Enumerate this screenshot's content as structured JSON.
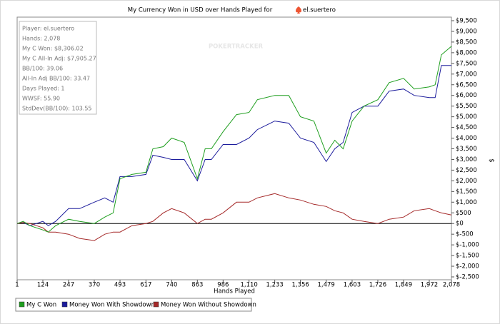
{
  "chart_data": {
    "type": "line",
    "title": "My Currency Won in USD over Hands Played for",
    "title_player": "el.suertero",
    "watermark": "POKERTRACKER",
    "info_box": [
      "Player: el.suertero",
      "Hands: 2,078",
      "My C Won: $8,306.02",
      "My C All-In Adj: $7,905.27",
      "BB/100: 39.06",
      "All-In Adj BB/100: 33.47",
      "Days Played: 1",
      "WWSF: 55.90",
      "StdDev(BB/100): 103.55"
    ],
    "x_label": "Hands Played",
    "y_label": "$",
    "x": [
      1,
      30,
      62,
      124,
      150,
      185,
      247,
      300,
      370,
      420,
      460,
      493,
      550,
      617,
      650,
      700,
      740,
      800,
      863,
      900,
      930,
      986,
      1050,
      1110,
      1150,
      1233,
      1300,
      1356,
      1420,
      1479,
      1520,
      1560,
      1603,
      1660,
      1726,
      1780,
      1849,
      1900,
      1972,
      2000,
      2030,
      2078
    ],
    "series": [
      {
        "name": "My C Won",
        "color": "#1e9e1e",
        "values": [
          0,
          100,
          -100,
          -300,
          -400,
          -100,
          200,
          100,
          0,
          300,
          500,
          2100,
          2300,
          2400,
          3500,
          3600,
          4000,
          3800,
          2100,
          3500,
          3500,
          4300,
          5100,
          5200,
          5800,
          6000,
          6000,
          5000,
          4800,
          3300,
          3900,
          3500,
          4800,
          5500,
          5800,
          6600,
          6800,
          6300,
          6400,
          6500,
          7900,
          8300
        ]
      },
      {
        "name": "Money Won With Showdown",
        "color": "#1c1c9c",
        "values": [
          0,
          50,
          -100,
          100,
          -100,
          100,
          700,
          700,
          1000,
          1200,
          1000,
          2200,
          2200,
          2300,
          3200,
          3100,
          3000,
          3000,
          2000,
          3000,
          3000,
          3700,
          3700,
          4000,
          4400,
          4800,
          4700,
          4000,
          3800,
          2900,
          3500,
          3800,
          5200,
          5500,
          5500,
          6200,
          6300,
          6000,
          5900,
          5900,
          7400,
          7400
        ]
      },
      {
        "name": "Money Won Without Showdown",
        "color": "#a52a2a",
        "values": [
          0,
          50,
          0,
          -200,
          -400,
          -400,
          -500,
          -700,
          -800,
          -500,
          -400,
          -400,
          -100,
          0,
          100,
          500,
          700,
          500,
          0,
          200,
          200,
          500,
          1000,
          1000,
          1200,
          1400,
          1200,
          1100,
          900,
          800,
          600,
          500,
          200,
          100,
          0,
          200,
          300,
          600,
          700,
          600,
          500,
          400
        ]
      }
    ],
    "xlim": [
      1,
      2078
    ],
    "xticks": [
      1,
      124,
      247,
      370,
      493,
      617,
      740,
      863,
      986,
      {
        "value": 1110,
        "label": "1,110"
      },
      {
        "value": 1233,
        "label": "1,233"
      },
      {
        "value": 1356,
        "label": "1,356"
      },
      {
        "value": 1479,
        "label": "1,479"
      },
      {
        "value": 1603,
        "label": "1,603"
      },
      {
        "value": 1726,
        "label": "1,726"
      },
      {
        "value": 1849,
        "label": "1,849"
      },
      {
        "value": 1972,
        "label": "1,972"
      },
      {
        "value": 2078,
        "label": "2,078"
      }
    ],
    "ylim": [
      -2500,
      9500
    ],
    "yticks": [
      {
        "value": -2500,
        "label": "$-2,500"
      },
      {
        "value": -2000,
        "label": "$-2,000"
      },
      {
        "value": -1500,
        "label": "$-1,500"
      },
      {
        "value": -1000,
        "label": "$-1,000"
      },
      {
        "value": -500,
        "label": "$-500"
      },
      {
        "value": 0,
        "label": "$0"
      },
      {
        "value": 500,
        "label": "$500"
      },
      {
        "value": 1000,
        "label": "$1,000"
      },
      {
        "value": 1500,
        "label": "$1,500"
      },
      {
        "value": 2000,
        "label": "$2,000"
      },
      {
        "value": 2500,
        "label": "$2,500"
      },
      {
        "value": 3000,
        "label": "$3,000"
      },
      {
        "value": 3500,
        "label": "$3,500"
      },
      {
        "value": 4000,
        "label": "$4,000"
      },
      {
        "value": 4500,
        "label": "$4,500"
      },
      {
        "value": 5000,
        "label": "$5,000"
      },
      {
        "value": 5500,
        "label": "$5,500"
      },
      {
        "value": 6000,
        "label": "$6,000"
      },
      {
        "value": 6500,
        "label": "$6,500"
      },
      {
        "value": 7000,
        "label": "$7,000"
      },
      {
        "value": 7500,
        "label": "$7,500"
      },
      {
        "value": 8000,
        "label": "$8,000"
      },
      {
        "value": 8500,
        "label": "$8,500"
      },
      {
        "value": 9000,
        "label": "$9,000"
      },
      {
        "value": 9500,
        "label": "$9,500"
      }
    ],
    "zero_line": true
  }
}
